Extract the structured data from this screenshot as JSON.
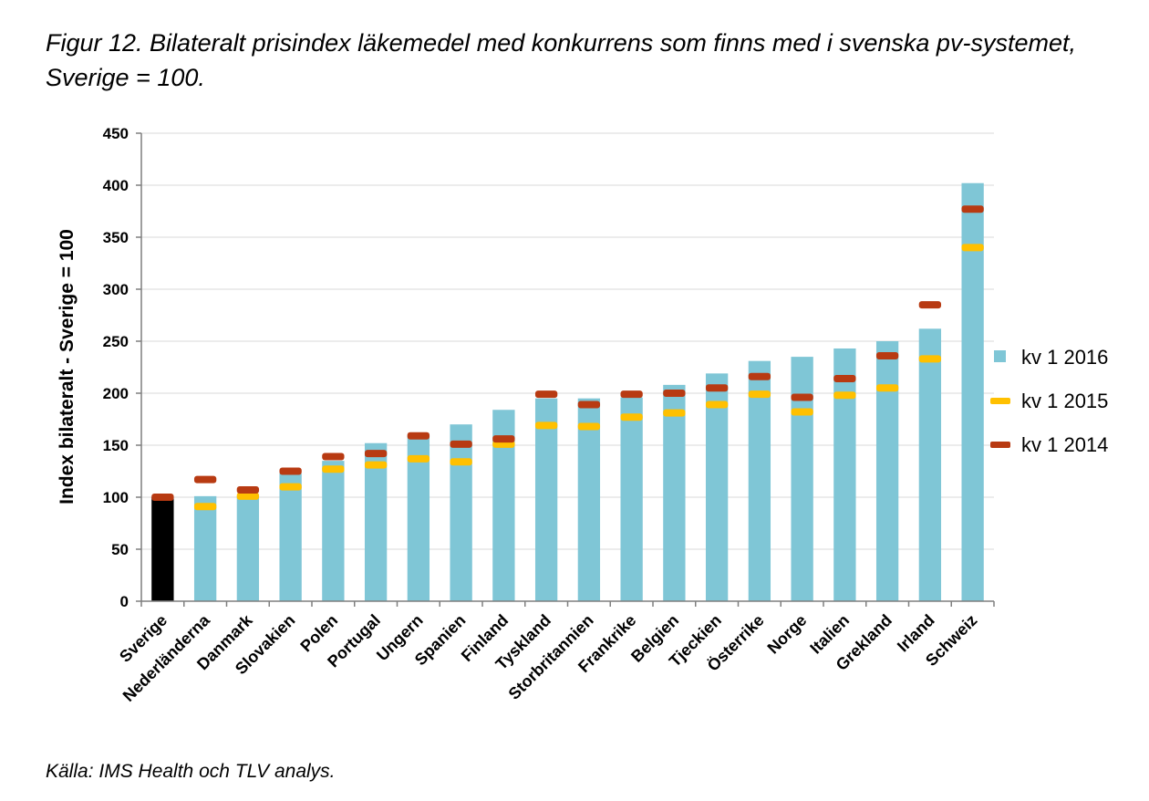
{
  "figure": {
    "title": "Figur 12. Bilateralt prisindex läkemedel med konkurrens som finns med i svenska pv-systemet, Sverige = 100.",
    "source": "Källa: IMS Health och TLV analys."
  },
  "chart_data": {
    "type": "bar",
    "title": "",
    "xlabel": "",
    "ylabel": "Index bilateralt - Sverige = 100",
    "ylim": [
      0,
      450
    ],
    "yticks": [
      0,
      50,
      100,
      150,
      200,
      250,
      300,
      350,
      400,
      450
    ],
    "grid": true,
    "legend_position": "right",
    "categories": [
      "Sverige",
      "Nederländerna",
      "Danmark",
      "Slovakien",
      "Polen",
      "Portugal",
      "Ungern",
      "Spanien",
      "Finland",
      "Tyskland",
      "Storbritannien",
      "Frankrike",
      "Belgien",
      "Tjeckien",
      "Österrike",
      "Norge",
      "Italien",
      "Grekland",
      "Irland",
      "Schweiz"
    ],
    "highlight_category": "Sverige",
    "highlight_color": "#000000",
    "series": [
      {
        "name": "kv 1 2016",
        "kind": "bar",
        "color": "#7fc6d6",
        "values": [
          100,
          101,
          101,
          123,
          135,
          152,
          160,
          170,
          184,
          195,
          195,
          196,
          208,
          219,
          231,
          235,
          243,
          250,
          262,
          402
        ]
      },
      {
        "name": "kv 1 2015",
        "kind": "marker",
        "color": "#ffc000",
        "values": [
          null,
          91,
          101,
          110,
          127,
          131,
          137,
          134,
          151,
          169,
          168,
          177,
          181,
          189,
          199,
          182,
          198,
          205,
          233,
          340
        ]
      },
      {
        "name": "kv 1 2014",
        "kind": "marker",
        "color": "#b83a12",
        "values": [
          100,
          117,
          107,
          125,
          139,
          142,
          159,
          151,
          156,
          199,
          189,
          199,
          200,
          205,
          216,
          196,
          214,
          236,
          285,
          377
        ]
      }
    ]
  }
}
